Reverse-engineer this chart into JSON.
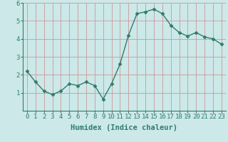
{
  "x": [
    0,
    1,
    2,
    3,
    4,
    5,
    6,
    7,
    8,
    9,
    10,
    11,
    12,
    13,
    14,
    15,
    16,
    17,
    18,
    19,
    20,
    21,
    22,
    23
  ],
  "y": [
    2.2,
    1.6,
    1.1,
    0.9,
    1.1,
    1.5,
    1.4,
    1.6,
    1.4,
    0.65,
    1.5,
    2.6,
    4.2,
    5.4,
    5.5,
    5.65,
    5.4,
    4.75,
    4.35,
    4.15,
    4.35,
    4.1,
    4.0,
    3.7
  ],
  "line_color": "#2e7d6e",
  "marker": "D",
  "marker_size": 2.5,
  "bg_color": "#cce8e8",
  "grid_color": "#cc9999",
  "xlabel": "Humidex (Indice chaleur)",
  "ylim": [
    0,
    6
  ],
  "xlim": [
    -0.5,
    23.5
  ],
  "yticks": [
    1,
    2,
    3,
    4,
    5,
    6
  ],
  "xtick_labels": [
    "0",
    "1",
    "2",
    "3",
    "4",
    "5",
    "6",
    "7",
    "8",
    "9",
    "10",
    "11",
    "12",
    "13",
    "14",
    "15",
    "16",
    "17",
    "18",
    "19",
    "20",
    "21",
    "22",
    "23"
  ],
  "xlabel_fontsize": 7.5,
  "tick_fontsize": 6.5,
  "line_width": 1.0,
  "axis_color": "#2e7d6e",
  "spine_color": "#2e7d6e"
}
